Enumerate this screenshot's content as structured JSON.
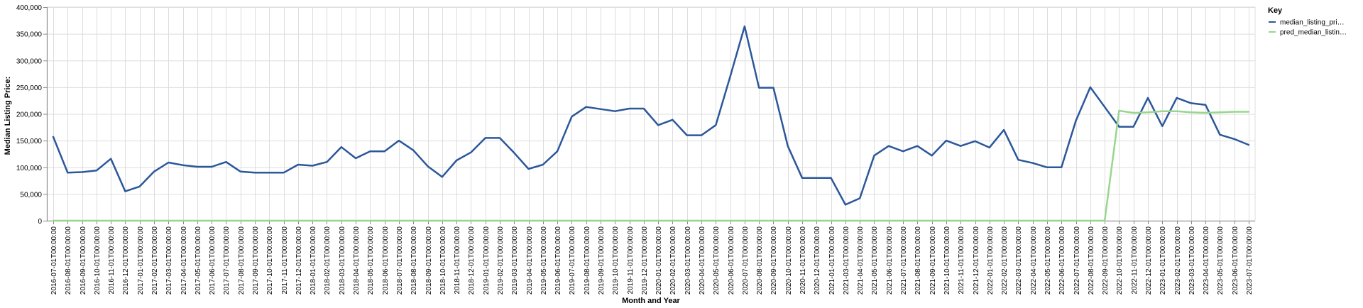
{
  "chart_data": {
    "type": "line",
    "title": "",
    "xlabel": "Month and Year",
    "ylabel": "Median Listing Price:",
    "ylim": [
      0,
      400000
    ],
    "y_ticks": [
      "0",
      "50,000",
      "100,000",
      "150,000",
      "200,000",
      "250,000",
      "300,000",
      "350,000",
      "400,000"
    ],
    "y_tick_values": [
      0,
      50000,
      100000,
      150000,
      200000,
      250000,
      300000,
      350000,
      400000
    ],
    "grid": true,
    "legend": {
      "title": "Key",
      "position": "top-right",
      "entries": [
        "median_listing_pri…",
        "pred_median_listin…"
      ]
    },
    "categories": [
      "2016-07-01T00:00:00",
      "2016-08-01T00:00:00",
      "2016-09-01T00:00:00",
      "2016-10-01T00:00:00",
      "2016-11-01T00:00:00",
      "2016-12-01T00:00:00",
      "2017-01-01T00:00:00",
      "2017-02-01T00:00:00",
      "2017-03-01T00:00:00",
      "2017-04-01T00:00:00",
      "2017-05-01T00:00:00",
      "2017-06-01T00:00:00",
      "2017-07-01T00:00:00",
      "2017-08-01T00:00:00",
      "2017-09-01T00:00:00",
      "2017-10-01T00:00:00",
      "2017-11-01T00:00:00",
      "2017-12-01T00:00:00",
      "2018-01-01T00:00:00",
      "2018-02-01T00:00:00",
      "2018-03-01T00:00:00",
      "2018-04-01T00:00:00",
      "2018-05-01T00:00:00",
      "2018-06-01T00:00:00",
      "2018-07-01T00:00:00",
      "2018-08-01T00:00:00",
      "2018-09-01T00:00:00",
      "2018-10-01T00:00:00",
      "2018-11-01T00:00:00",
      "2018-12-01T00:00:00",
      "2019-01-01T00:00:00",
      "2019-02-01T00:00:00",
      "2019-03-01T00:00:00",
      "2019-04-01T00:00:00",
      "2019-05-01T00:00:00",
      "2019-06-01T00:00:00",
      "2019-07-01T00:00:00",
      "2019-08-01T00:00:00",
      "2019-09-01T00:00:00",
      "2019-10-01T00:00:00",
      "2019-11-01T00:00:00",
      "2019-12-01T00:00:00",
      "2020-01-01T00:00:00",
      "2020-02-01T00:00:00",
      "2020-03-01T00:00:00",
      "2020-04-01T00:00:00",
      "2020-05-01T00:00:00",
      "2020-06-01T00:00:00",
      "2020-07-01T00:00:00",
      "2020-08-01T00:00:00",
      "2020-09-01T00:00:00",
      "2020-10-01T00:00:00",
      "2020-11-01T00:00:00",
      "2020-12-01T00:00:00",
      "2021-01-01T00:00:00",
      "2021-03-01T00:00:00",
      "2021-04-01T00:00:00",
      "2021-05-01T00:00:00",
      "2021-06-01T00:00:00",
      "2021-07-01T00:00:00",
      "2021-08-01T00:00:00",
      "2021-09-01T00:00:00",
      "2021-10-01T00:00:00",
      "2021-11-01T00:00:00",
      "2021-12-01T00:00:00",
      "2022-01-01T00:00:00",
      "2022-02-01T00:00:00",
      "2022-03-01T00:00:00",
      "2022-04-01T00:00:00",
      "2022-05-01T00:00:00",
      "2022-06-01T00:00:00",
      "2022-07-01T00:00:00",
      "2022-08-01T00:00:00",
      "2022-09-01T00:00:00",
      "2022-10-01T00:00:00",
      "2022-11-01T00:00:00",
      "2022-12-01T00:00:00",
      "2023-01-01T00:00:00",
      "2023-02-01T00:00:00",
      "2023-03-01T00:00:00",
      "2023-04-01T00:00:00",
      "2023-05-01T00:00:00",
      "2023-06-01T00:00:00",
      "2023-07-01T00:00:00"
    ],
    "series": [
      {
        "name": "median_listing_pri…",
        "color": "#2b579a",
        "values": [
          157000,
          90000,
          91000,
          94000,
          116000,
          55000,
          64000,
          92000,
          109000,
          104000,
          101000,
          101000,
          110000,
          92000,
          90000,
          90000,
          90000,
          105000,
          103000,
          110000,
          138000,
          117000,
          130000,
          130000,
          150000,
          132000,
          102000,
          82000,
          113000,
          128000,
          155000,
          155000,
          127000,
          97000,
          105000,
          130000,
          195000,
          213000,
          209000,
          205000,
          210000,
          210000,
          179000,
          189000,
          160000,
          160000,
          179000,
          270000,
          364000,
          249000,
          249000,
          140000,
          80000,
          80000,
          80000,
          30000,
          42000,
          122000,
          140000,
          130000,
          140000,
          122000,
          150000,
          140000,
          149000,
          137000,
          170000,
          114000,
          108000,
          100000,
          100000,
          187000,
          250000,
          213000,
          176000,
          176000,
          230000,
          177000,
          230000,
          220000,
          217000,
          161000,
          153000,
          142000
        ]
      },
      {
        "name": "pred_median_listin…",
        "color": "#98d68e",
        "values": [
          0,
          0,
          0,
          0,
          0,
          0,
          0,
          0,
          0,
          0,
          0,
          0,
          0,
          0,
          0,
          0,
          0,
          0,
          0,
          0,
          0,
          0,
          0,
          0,
          0,
          0,
          0,
          0,
          0,
          0,
          0,
          0,
          0,
          0,
          0,
          0,
          0,
          0,
          0,
          0,
          0,
          0,
          0,
          0,
          0,
          0,
          0,
          0,
          0,
          0,
          0,
          0,
          0,
          0,
          0,
          0,
          0,
          0,
          0,
          0,
          0,
          0,
          0,
          0,
          0,
          0,
          0,
          0,
          0,
          0,
          0,
          0,
          0,
          0,
          206000,
          202000,
          203000,
          205000,
          205000,
          203000,
          202000,
          203000,
          204000,
          204000
        ]
      }
    ]
  }
}
